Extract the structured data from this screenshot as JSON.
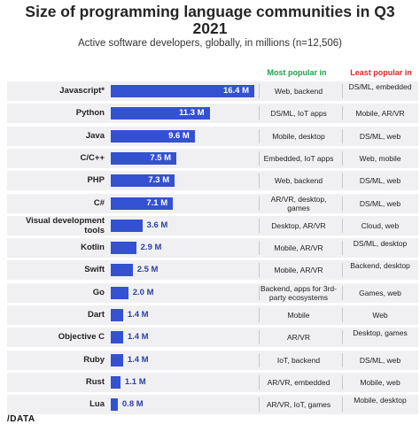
{
  "header": {
    "title_line1": "Size of programming language communities in Q3",
    "title_line2": "2021",
    "subtitle": "Active software developers, globally, in millions (n=12,506)",
    "most_popular": "Most popular in",
    "least_popular": "Least popular in"
  },
  "colors": {
    "bar": "#3451d1",
    "most_header": "#16a34a",
    "least_header": "#dc2626",
    "row_bg": "#f0f0f2"
  },
  "chart_data": {
    "type": "bar",
    "orientation": "horizontal",
    "categories": [
      "Javascript*",
      "Python",
      "Java",
      "C/C++",
      "PHP",
      "C#",
      "Visual development tools",
      "Kotlin",
      "Swift",
      "Go",
      "Dart",
      "Objective C",
      "Ruby",
      "Rust",
      "Lua"
    ],
    "values": [
      16.4,
      11.3,
      9.6,
      7.5,
      7.3,
      7.1,
      3.6,
      2.9,
      2.5,
      2.0,
      1.4,
      1.4,
      1.4,
      1.1,
      0.8
    ],
    "value_labels": [
      "16.4 M",
      "11.3 M",
      "9.6 M",
      "7.5 M",
      "7.3 M",
      "7.1 M",
      "3.6 M",
      "2.9 M",
      "2.5 M",
      "2.0 M",
      "1.4 M",
      "1.4 M",
      "1.4 M",
      "1.1 M",
      "0.8 M"
    ],
    "most_popular_in": [
      "Web, backend",
      "DS/ML, IoT apps",
      "Mobile, desktop",
      "Embedded, IoT apps",
      "Web, backend",
      "AR/VR, desktop, games",
      "Desktop, AR/VR",
      "Mobile, AR/VR",
      "Mobile, AR/VR",
      "Backend, apps for 3rd-party ecosystems",
      "Mobile",
      "AR/VR",
      "IoT, backend",
      "AR/VR, embedded",
      "AR/VR, IoT, games"
    ],
    "least_popular_in": [
      "DS/ML, embedded",
      "Mobile, AR/VR",
      "DS/ML, web",
      "Web, mobile",
      "DS/ML, web",
      "DS/ML, web",
      "Cloud, web",
      "DS/ML, desktop",
      "Backend, desktop",
      "Games, web",
      "Web",
      "Desktop, games",
      "DS/ML, web",
      "Mobile, web",
      "Mobile, desktop"
    ],
    "title": "Size of programming language communities in Q3 2021",
    "subtitle": "Active software developers, globally, in millions (n=12,506)",
    "xlim": [
      0,
      16.4
    ],
    "grid": false,
    "legend": "none"
  },
  "footer": {
    "logo_text": "/DATA"
  }
}
